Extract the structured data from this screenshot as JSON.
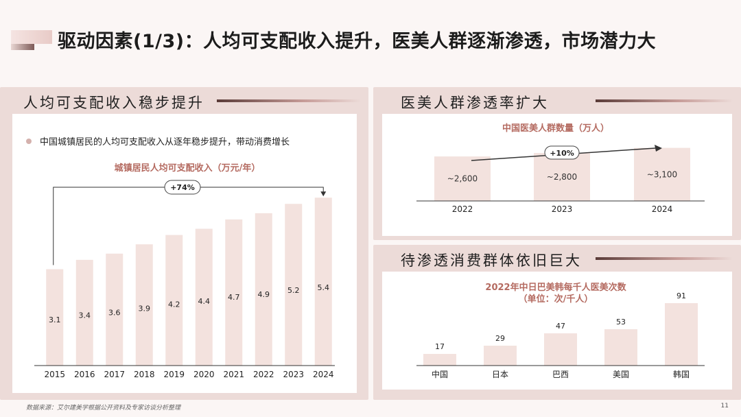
{
  "page_title": "驱动因素(1/3)：人均可支配收入提升，医美人群逐渐渗透，市场潜力大",
  "left_panel": {
    "section_title": "人均可支配收入稳步提升",
    "bullet": "中国城镇居民的人均可支配收入从逐年稳步提升，带动消费增长"
  },
  "top_right_panel": {
    "section_title": "医美人群渗透率扩大"
  },
  "bottom_right_panel": {
    "section_title": "待渗透消费群体依旧巨大"
  },
  "footer": {
    "source": "数据来源：艾尔建美学根据公开资料及专家访谈分析整理",
    "page_number": "11"
  },
  "colors": {
    "bar": "#f3e2de",
    "accent_text": "#b46a60",
    "section_bg": "#ecdbd8"
  },
  "chart_data": [
    {
      "type": "bar",
      "title": "城镇居民人均可支配收入（万元/年）",
      "categories": [
        "2015",
        "2016",
        "2017",
        "2018",
        "2019",
        "2020",
        "2021",
        "2022",
        "2023",
        "2024"
      ],
      "values": [
        3.1,
        3.4,
        3.6,
        3.9,
        4.2,
        4.4,
        4.7,
        4.9,
        5.2,
        5.4
      ],
      "value_labels": [
        "3.1",
        "3.4",
        "3.6",
        "3.9",
        "4.2",
        "4.4",
        "4.7",
        "4.9",
        "5.2",
        "5.4"
      ],
      "annotation": "+74%",
      "ylim": [
        0,
        6
      ],
      "grid": false
    },
    {
      "type": "bar",
      "title": "中国医美人群数量（万人）",
      "categories": [
        "2022",
        "2023",
        "2024"
      ],
      "values": [
        2600,
        2800,
        3100
      ],
      "value_labels": [
        "~2,600",
        "~2,800",
        "~3,100"
      ],
      "annotation": "+10%",
      "ylim": [
        0,
        3500
      ],
      "grid": false
    },
    {
      "type": "bar",
      "title": "2022年中日巴美韩每千人医美次数",
      "subtitle": "（单位：次/千人）",
      "categories": [
        "中国",
        "日本",
        "巴西",
        "美国",
        "韩国"
      ],
      "values": [
        17,
        29,
        47,
        53,
        91
      ],
      "value_labels": [
        "17",
        "29",
        "47",
        "53",
        "91"
      ],
      "ylim": [
        0,
        100
      ],
      "grid": false
    }
  ]
}
